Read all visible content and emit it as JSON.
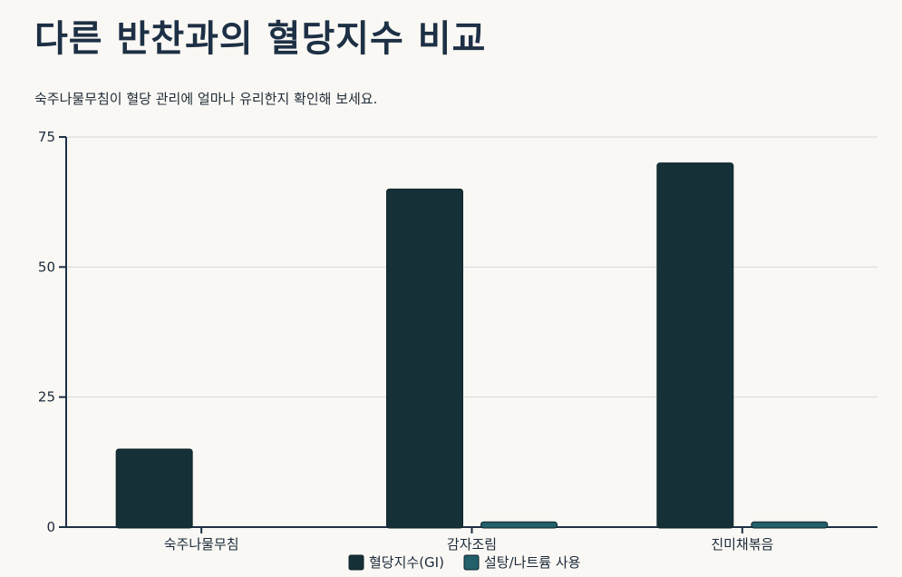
{
  "page": {
    "title": "다른 반찬과의 혈당지수 비교",
    "subtitle": "숙주나물무침이 혈당 관리에 얼마나 유리한지 확인해 보세요."
  },
  "chart_data": {
    "type": "bar",
    "categories": [
      "숙주나물무침",
      "감자조림",
      "진미채볶음"
    ],
    "series": [
      {
        "name": "혈당지수(GI)",
        "values": [
          15,
          65,
          70
        ],
        "color": "#163038"
      },
      {
        "name": "설탕/나트륨 사용",
        "values": [
          0,
          1,
          1
        ],
        "color": "#22606a"
      }
    ],
    "ylim": [
      0,
      75
    ],
    "yticks": [
      0,
      25,
      50,
      75
    ],
    "grid": true,
    "legend": "bottom"
  }
}
